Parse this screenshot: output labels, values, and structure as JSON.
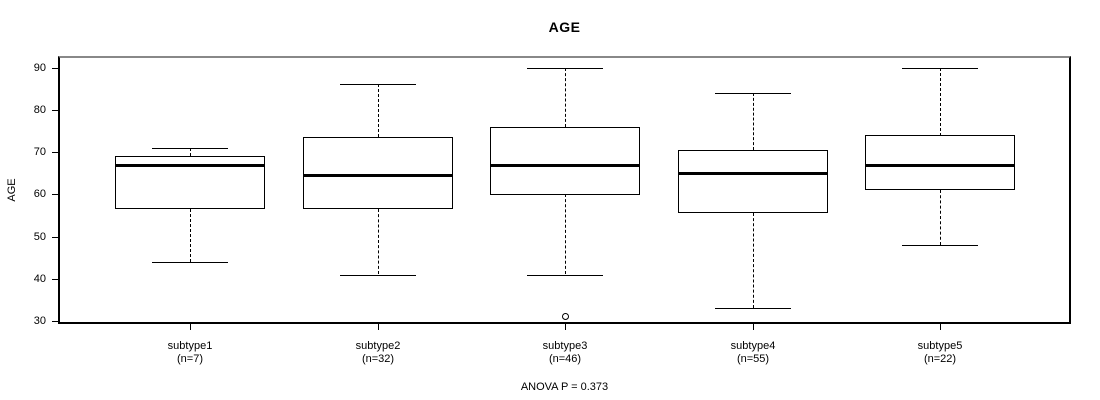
{
  "chart_data": {
    "type": "box",
    "title": "AGE",
    "ylabel": "AGE",
    "xlabel": "",
    "caption": "ANOVA P = 0.373",
    "ylim": [
      30,
      90
    ],
    "yticks": [
      30,
      40,
      50,
      60,
      70,
      80,
      90
    ],
    "grid": false,
    "legend": false,
    "colors": {
      "line": "#000000",
      "background": "#ffffff",
      "frame_top": "#888888"
    },
    "groups": [
      {
        "label": "subtype1",
        "sublabel": "(n=7)",
        "n": 7,
        "whisker_low": 44,
        "q1": 56.5,
        "median": 67,
        "q3": 69,
        "whisker_high": 71,
        "outliers": []
      },
      {
        "label": "subtype2",
        "sublabel": "(n=32)",
        "n": 32,
        "whisker_low": 41,
        "q1": 56.5,
        "median": 64.5,
        "q3": 73.5,
        "whisker_high": 86,
        "outliers": []
      },
      {
        "label": "subtype3",
        "sublabel": "(n=46)",
        "n": 46,
        "whisker_low": 41,
        "q1": 60,
        "median": 67,
        "q3": 76,
        "whisker_high": 90,
        "outliers": [
          31
        ]
      },
      {
        "label": "subtype4",
        "sublabel": "(n=55)",
        "n": 55,
        "whisker_low": 33,
        "q1": 55.5,
        "median": 65,
        "q3": 70.5,
        "whisker_high": 84,
        "outliers": []
      },
      {
        "label": "subtype5",
        "sublabel": "(n=22)",
        "n": 22,
        "whisker_low": 48,
        "q1": 61,
        "median": 67,
        "q3": 74,
        "whisker_high": 90,
        "outliers": []
      }
    ]
  }
}
